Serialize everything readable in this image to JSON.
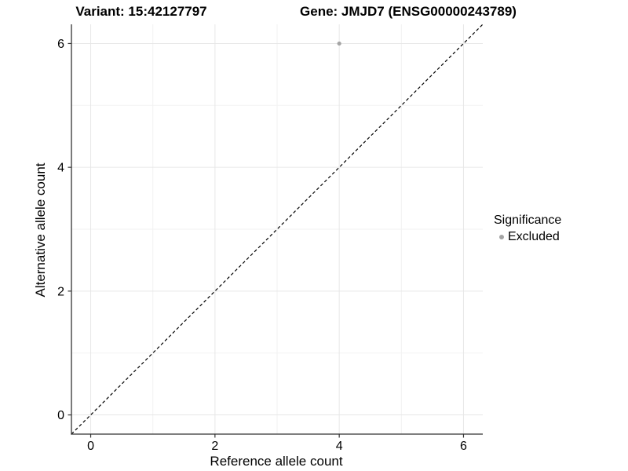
{
  "header": {
    "title_left": "Variant: 15:42127797",
    "title_right": "Gene: JMJD7 (ENSG00000243789)"
  },
  "chart_data": {
    "type": "scatter",
    "xlabel": "Reference allele count",
    "ylabel": "Alternative allele count",
    "xticks": [
      0,
      2,
      4,
      6
    ],
    "yticks": [
      0,
      2,
      4,
      6
    ],
    "minor_xticks": [
      1,
      3,
      5
    ],
    "minor_yticks": [
      1,
      3,
      5
    ],
    "xlim": [
      -0.31,
      6.31
    ],
    "ylim": [
      -0.31,
      6.31
    ],
    "grid": "on",
    "legend_position": "right",
    "series": [
      {
        "name": "Excluded",
        "color": "#a4a4a4",
        "points": [
          {
            "x": 4,
            "y": 6
          }
        ]
      }
    ],
    "reference_line": {
      "type": "identity",
      "slope": 1,
      "intercept": 0,
      "style": "dashed",
      "color": "#000000"
    },
    "legend": {
      "title": "Significance",
      "entries": [
        {
          "label": "Excluded",
          "color": "#a4a4a4"
        }
      ]
    }
  },
  "colors": {
    "background": "#ffffff",
    "grid_major": "#e7e7e7",
    "grid_minor": "#f2f2f2",
    "axis_line": "#333333",
    "tick_mark": "#333333",
    "tick_label": "#000000",
    "point": "#a4a4a4"
  }
}
